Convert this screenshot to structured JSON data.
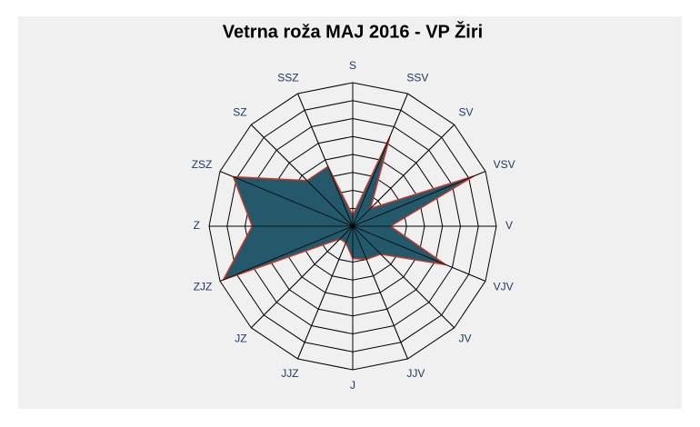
{
  "chart_data": {
    "type": "radar",
    "title": "Vetrna roža MAJ 2016 - VP Žiri",
    "categories": [
      "S",
      "SSV",
      "SV",
      "VSV",
      "V",
      "VJV",
      "JV",
      "JJV",
      "J",
      "JJZ",
      "JZ",
      "ZJZ",
      "Z",
      "ZSZ",
      "SZ",
      "SSZ"
    ],
    "values": [
      0.6,
      5.4,
      1.4,
      7.3,
      2.1,
      5.6,
      2.2,
      2.0,
      1.8,
      1.0,
      1.0,
      7.8,
      5.6,
      7.2,
      3.6,
      3.6
    ],
    "color": "#23596b",
    "edge_color": "#c0392b",
    "ylim": [
      0,
      8
    ],
    "yticks": [
      1,
      2,
      3,
      4,
      5,
      6,
      7,
      8
    ],
    "grid": true
  }
}
